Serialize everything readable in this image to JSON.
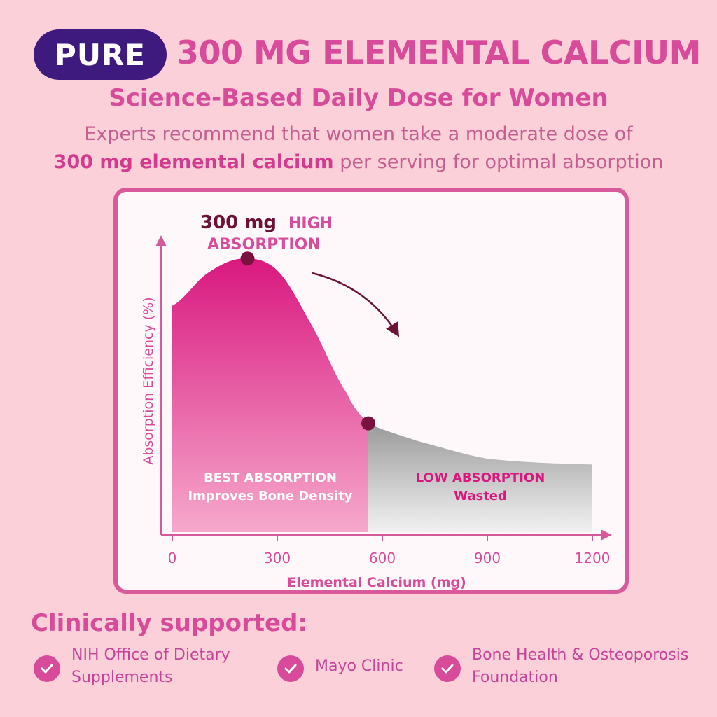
{
  "header": {
    "pill": "PURE",
    "headline": "300 MG ELEMENTAL CALCIUM",
    "subhead": "Science-Based Daily Dose for Women",
    "desc_line1": "Experts recommend that women take a moderate dose of",
    "desc_line2_bold": "300 mg elemental calcium",
    "desc_line2_rest": " per serving for optimal absorption"
  },
  "chart_data": {
    "type": "area",
    "title": "",
    "xlabel": "Elemental Calcium (mg)",
    "ylabel": "Absorption Efficiency (%)",
    "xlim": [
      0,
      1200
    ],
    "x_ticks": [
      0,
      300,
      600,
      900,
      1200
    ],
    "x_tick_labels": [
      "0",
      "300",
      "600",
      "900",
      "1200"
    ],
    "grid": false,
    "curve": {
      "x": [
        0,
        100,
        200,
        300,
        400,
        500,
        560,
        700,
        900,
        1200
      ],
      "y": [
        77,
        88,
        93,
        89,
        70,
        47,
        37,
        31,
        25,
        23
      ]
    },
    "peak": {
      "x": 215,
      "y": 93
    },
    "split_x": 560,
    "regions": [
      {
        "name": "high",
        "label": "BEST ABSORPTION",
        "sublabel": "Improves Bone Density",
        "color": "#e0378f"
      },
      {
        "name": "low",
        "label": "LOW ABSORPTION",
        "sublabel": "Wasted",
        "color": "#a8a8a8"
      }
    ],
    "annotation": {
      "bold": "300 mg",
      "highlight_line1": "HIGH",
      "highlight_line2": "ABSORPTION"
    },
    "colors": {
      "axis": "#d45a9b",
      "dot": "#7a1240",
      "label": "#d94b9b",
      "bold": "#6b1236"
    }
  },
  "clinical": {
    "title": "Clinically supported:",
    "items": [
      {
        "line1": "NIH Office of Dietary",
        "line2": "Supplements"
      },
      {
        "line1": "Mayo Clinic",
        "line2": ""
      },
      {
        "line1": "Bone Health & Osteoporosis",
        "line2": "Foundation"
      }
    ],
    "check_icon": "check-icon"
  }
}
